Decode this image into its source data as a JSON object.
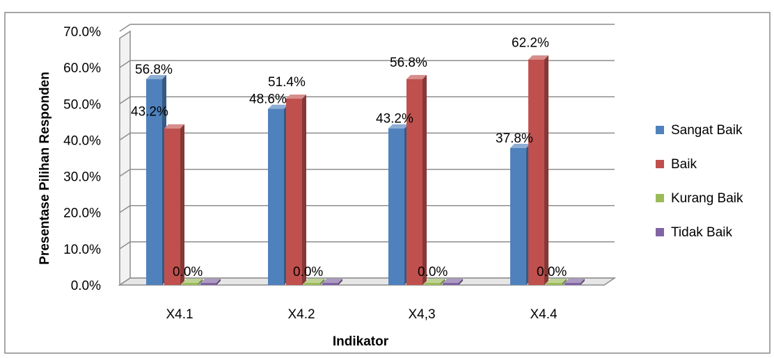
{
  "chart_data": {
    "type": "bar",
    "categories": [
      "X4.1",
      "X4.2",
      "X4,3",
      "X4.4"
    ],
    "series": [
      {
        "name": "Sangat Baik",
        "values": [
          56.8,
          48.6,
          43.2,
          37.8
        ],
        "labels": [
          "56.8%",
          "48.6%",
          "43.2%",
          "37.8%"
        ]
      },
      {
        "name": "Baik",
        "values": [
          43.2,
          51.4,
          56.8,
          62.2
        ],
        "labels": [
          "43.2%",
          "51.4%",
          "56.8%",
          "62.2%"
        ]
      },
      {
        "name": "Kurang Baik",
        "values": [
          0,
          0,
          0,
          0
        ],
        "labels": [
          "0.0%",
          "0.0%",
          "0.0%",
          "0.0%"
        ]
      },
      {
        "name": "Tidak Baik",
        "values": [
          0,
          0,
          0,
          0
        ],
        "labels": [
          null,
          null,
          null,
          null
        ]
      }
    ],
    "yticks": [
      "0.0%",
      "10.0%",
      "20.0%",
      "30.0%",
      "40.0%",
      "50.0%",
      "60.0%",
      "70.0%"
    ],
    "ylim": [
      0,
      70
    ],
    "xlabel": "Indikator",
    "ylabel": "Presentase Pilihan Responden",
    "legend_position": "right",
    "grid": true,
    "colors": {
      "Sangat Baik": "#4F81BD",
      "Baik": "#C0504D",
      "Kurang Baik": "#9BBB59",
      "Tidak Baik": "#8064A2"
    }
  }
}
